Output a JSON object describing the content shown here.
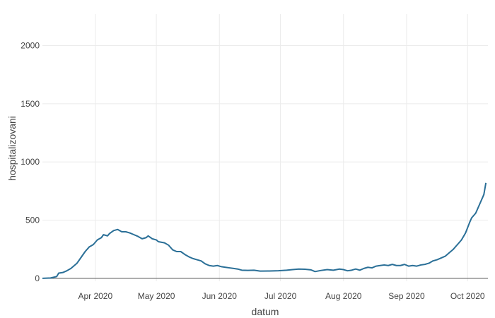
{
  "chart_data": {
    "type": "line",
    "xlabel": "datum",
    "ylabel": "hospitalizovani",
    "xlim": [
      "2020-03-06",
      "2020-10-11"
    ],
    "ylim": [
      -25,
      2270
    ],
    "grid": true,
    "x_ticks": [
      {
        "date": "2020-04-01",
        "label": "Apr 2020"
      },
      {
        "date": "2020-05-01",
        "label": "May 2020"
      },
      {
        "date": "2020-06-01",
        "label": "Jun 2020"
      },
      {
        "date": "2020-07-01",
        "label": "Jul 2020"
      },
      {
        "date": "2020-08-01",
        "label": "Aug 2020"
      },
      {
        "date": "2020-09-01",
        "label": "Sep 2020"
      },
      {
        "date": "2020-10-01",
        "label": "Oct 2020"
      }
    ],
    "y_ticks": [
      0,
      500,
      1000,
      1500,
      2000
    ],
    "colors": {
      "line": "#2a6f97",
      "grid": "#ebebeb",
      "zero_line": "#555555"
    },
    "series": [
      {
        "points": [
          [
            "2020-03-06",
            0
          ],
          [
            "2020-03-10",
            3
          ],
          [
            "2020-03-13",
            15
          ],
          [
            "2020-03-14",
            45
          ],
          [
            "2020-03-16",
            50
          ],
          [
            "2020-03-18",
            65
          ],
          [
            "2020-03-20",
            85
          ],
          [
            "2020-03-23",
            130
          ],
          [
            "2020-03-25",
            180
          ],
          [
            "2020-03-27",
            230
          ],
          [
            "2020-03-29",
            270
          ],
          [
            "2020-03-31",
            290
          ],
          [
            "2020-04-02",
            330
          ],
          [
            "2020-04-04",
            350
          ],
          [
            "2020-04-05",
            375
          ],
          [
            "2020-04-07",
            365
          ],
          [
            "2020-04-08",
            385
          ],
          [
            "2020-04-10",
            410
          ],
          [
            "2020-04-12",
            420
          ],
          [
            "2020-04-14",
            400
          ],
          [
            "2020-04-16",
            400
          ],
          [
            "2020-04-18",
            390
          ],
          [
            "2020-04-20",
            375
          ],
          [
            "2020-04-22",
            360
          ],
          [
            "2020-04-24",
            340
          ],
          [
            "2020-04-26",
            350
          ],
          [
            "2020-04-27",
            365
          ],
          [
            "2020-04-29",
            340
          ],
          [
            "2020-05-01",
            330
          ],
          [
            "2020-05-02",
            315
          ],
          [
            "2020-05-05",
            305
          ],
          [
            "2020-05-07",
            285
          ],
          [
            "2020-05-09",
            245
          ],
          [
            "2020-05-11",
            230
          ],
          [
            "2020-05-13",
            230
          ],
          [
            "2020-05-15",
            205
          ],
          [
            "2020-05-17",
            185
          ],
          [
            "2020-05-19",
            170
          ],
          [
            "2020-05-21",
            160
          ],
          [
            "2020-05-23",
            150
          ],
          [
            "2020-05-25",
            125
          ],
          [
            "2020-05-27",
            110
          ],
          [
            "2020-05-29",
            105
          ],
          [
            "2020-05-31",
            110
          ],
          [
            "2020-06-02",
            100
          ],
          [
            "2020-06-04",
            95
          ],
          [
            "2020-06-06",
            90
          ],
          [
            "2020-06-08",
            85
          ],
          [
            "2020-06-10",
            80
          ],
          [
            "2020-06-12",
            70
          ],
          [
            "2020-06-15",
            68
          ],
          [
            "2020-06-18",
            70
          ],
          [
            "2020-06-21",
            62
          ],
          [
            "2020-06-25",
            63
          ],
          [
            "2020-06-30",
            65
          ],
          [
            "2020-07-04",
            70
          ],
          [
            "2020-07-07",
            75
          ],
          [
            "2020-07-10",
            80
          ],
          [
            "2020-07-13",
            78
          ],
          [
            "2020-07-16",
            73
          ],
          [
            "2020-07-18",
            58
          ],
          [
            "2020-07-21",
            68
          ],
          [
            "2020-07-24",
            75
          ],
          [
            "2020-07-27",
            70
          ],
          [
            "2020-07-30",
            80
          ],
          [
            "2020-08-01",
            75
          ],
          [
            "2020-08-03",
            65
          ],
          [
            "2020-08-05",
            70
          ],
          [
            "2020-08-07",
            80
          ],
          [
            "2020-08-09",
            70
          ],
          [
            "2020-08-11",
            85
          ],
          [
            "2020-08-13",
            95
          ],
          [
            "2020-08-15",
            90
          ],
          [
            "2020-08-17",
            105
          ],
          [
            "2020-08-19",
            110
          ],
          [
            "2020-08-21",
            115
          ],
          [
            "2020-08-23",
            110
          ],
          [
            "2020-08-25",
            120
          ],
          [
            "2020-08-27",
            110
          ],
          [
            "2020-08-29",
            110
          ],
          [
            "2020-08-31",
            120
          ],
          [
            "2020-09-02",
            105
          ],
          [
            "2020-09-04",
            110
          ],
          [
            "2020-09-06",
            105
          ],
          [
            "2020-09-08",
            115
          ],
          [
            "2020-09-10",
            120
          ],
          [
            "2020-09-12",
            130
          ],
          [
            "2020-09-14",
            150
          ],
          [
            "2020-09-16",
            160
          ],
          [
            "2020-09-18",
            175
          ],
          [
            "2020-09-20",
            190
          ],
          [
            "2020-09-22",
            220
          ],
          [
            "2020-09-24",
            250
          ],
          [
            "2020-09-26",
            290
          ],
          [
            "2020-09-28",
            330
          ],
          [
            "2020-09-30",
            390
          ],
          [
            "2020-10-02",
            480
          ],
          [
            "2020-10-03",
            520
          ],
          [
            "2020-10-05",
            560
          ],
          [
            "2020-10-07",
            640
          ],
          [
            "2020-10-09",
            720
          ],
          [
            "2020-10-10",
            820
          ]
        ]
      }
    ]
  }
}
